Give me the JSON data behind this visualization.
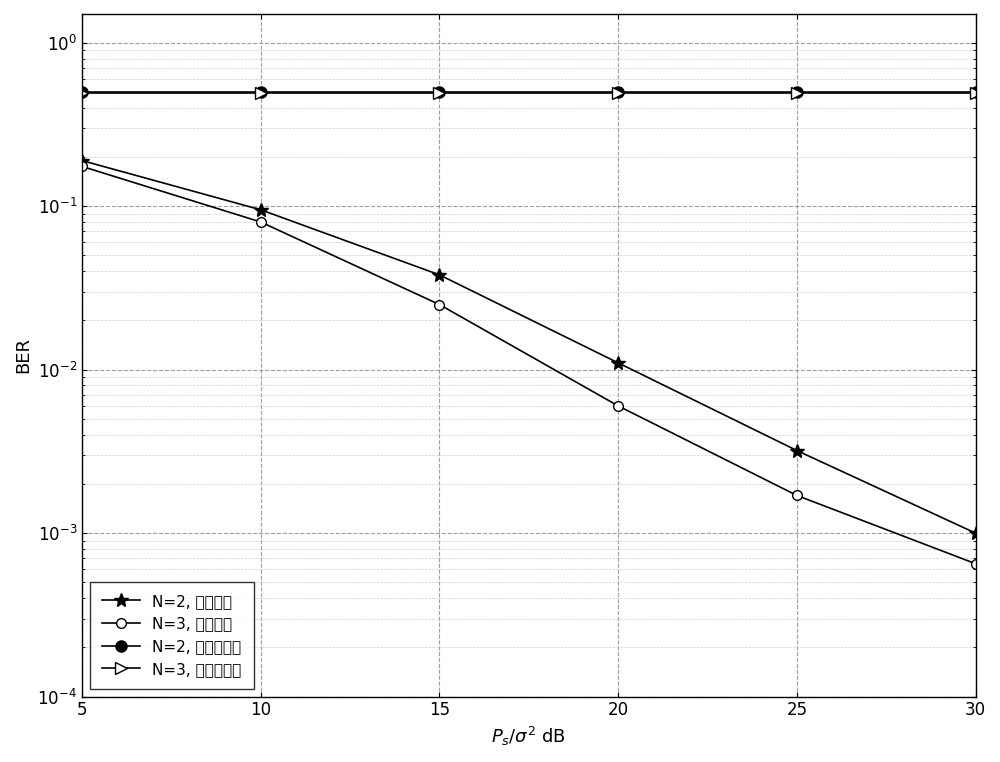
{
  "x": [
    5,
    10,
    15,
    20,
    25,
    30
  ],
  "y_N2_dest": [
    0.19,
    0.095,
    0.038,
    0.011,
    0.0032,
    0.001
  ],
  "y_N3_dest": [
    0.175,
    0.08,
    0.025,
    0.006,
    0.0017,
    0.00065
  ],
  "y_N2_relay": [
    0.5,
    0.5,
    0.5,
    0.5,
    0.5,
    0.5
  ],
  "y_N3_relay": [
    0.49,
    0.49,
    0.49,
    0.49,
    0.49,
    0.49
  ],
  "xlabel": "P_s/σ² dB",
  "ylabel": "BER",
  "xlim": [
    5,
    30
  ],
  "legend_labels": [
    "N=2, 目的节点",
    "N=3, 目的节点",
    "N=2, 不可靠中继",
    "N=3, 不可靠中继"
  ],
  "line_color": "#000000",
  "bg_color": "#ffffff",
  "grid_major_color": "#888888",
  "grid_minor_color": "#bbbbbb",
  "label_fontsize": 13,
  "tick_fontsize": 12,
  "legend_fontsize": 11
}
